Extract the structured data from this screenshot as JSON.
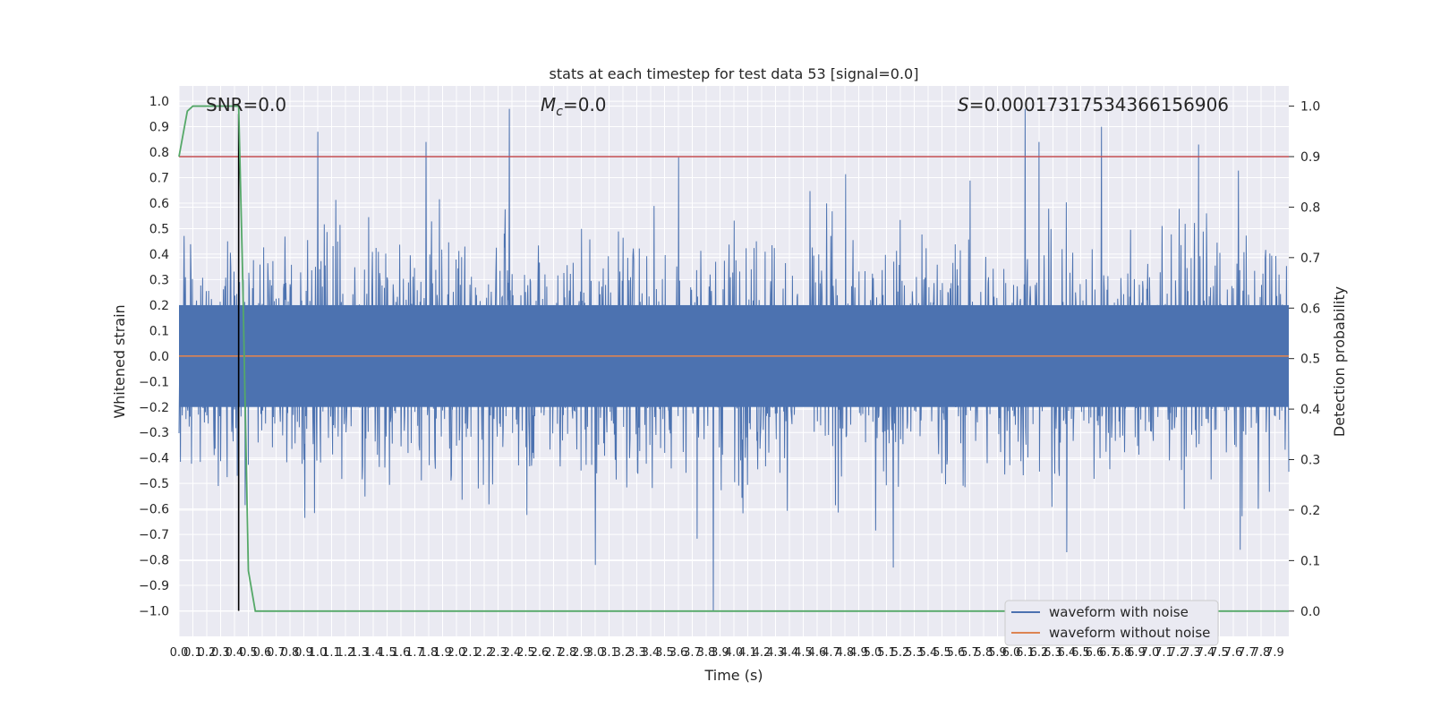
{
  "chart_data": {
    "type": "line",
    "title": "stats at each timestep for test data 53 [signal=0.0]",
    "xlabel": "Time (s)",
    "ylabel_left": "Whitened strain",
    "ylabel_right": "Detection probability",
    "xlim": [
      0.0,
      8.0
    ],
    "ylim_left": [
      -1.1,
      1.06
    ],
    "ylim_right": [
      -0.05,
      1.04
    ],
    "grid": true,
    "annotations": {
      "snr": "SNR=0.0",
      "mc_symbol": "M",
      "mc_sub": "c",
      "mc_value": "=0.0",
      "s_symbol": "S",
      "s_value": "=0.00017317534366156906"
    },
    "x_ticks": [
      0.0,
      0.1,
      0.2,
      0.3,
      0.4,
      0.5,
      0.6,
      0.7,
      0.8,
      0.9,
      1.0,
      1.1,
      1.2,
      1.3,
      1.4,
      1.5,
      1.6,
      1.7,
      1.8,
      1.9,
      2.0,
      2.1,
      2.2,
      2.3,
      2.4,
      2.5,
      2.6,
      2.7,
      2.8,
      2.9,
      3.0,
      3.1,
      3.2,
      3.3,
      3.4,
      3.5,
      3.6,
      3.7,
      3.8,
      3.9,
      4.0,
      4.1,
      4.2,
      4.3,
      4.4,
      4.5,
      4.6,
      4.7,
      4.8,
      4.9,
      5.0,
      5.1,
      5.2,
      5.3,
      5.4,
      5.5,
      5.6,
      5.7,
      5.8,
      5.9,
      6.0,
      6.1,
      6.2,
      6.3,
      6.4,
      6.5,
      6.6,
      6.7,
      6.8,
      6.9,
      7.0,
      7.1,
      7.2,
      7.3,
      7.4,
      7.5,
      7.6,
      7.7,
      7.8,
      7.9
    ],
    "y_ticks_left": [
      -1.0,
      -0.9,
      -0.8,
      -0.7,
      -0.6,
      -0.5,
      -0.4,
      -0.3,
      -0.2,
      -0.1,
      0.0,
      0.1,
      0.2,
      0.3,
      0.4,
      0.5,
      0.6,
      0.7,
      0.8,
      0.9,
      1.0
    ],
    "y_ticks_right": [
      0.0,
      0.1,
      0.2,
      0.3,
      0.4,
      0.5,
      0.6,
      0.7,
      0.8,
      0.9,
      1.0
    ],
    "series": [
      {
        "name": "waveform with noise",
        "axis": "left",
        "color": "#4c72b0",
        "style": "dense-noise",
        "core_range": [
          -0.2,
          0.2
        ],
        "peaks": [
          {
            "x": 1.0,
            "y": 0.88
          },
          {
            "x": 1.78,
            "y": 0.84
          },
          {
            "x": 2.38,
            "y": 0.97
          },
          {
            "x": 3.6,
            "y": 0.78
          },
          {
            "x": 6.1,
            "y": 0.97
          },
          {
            "x": 6.2,
            "y": 0.84
          },
          {
            "x": 6.65,
            "y": 0.9
          },
          {
            "x": 7.35,
            "y": 0.83
          },
          {
            "x": 0.42,
            "y": -0.47
          },
          {
            "x": 3.85,
            "y": -1.0
          },
          {
            "x": 3.0,
            "y": -0.82
          },
          {
            "x": 5.15,
            "y": -0.83
          },
          {
            "x": 7.65,
            "y": -0.76
          },
          {
            "x": 6.4,
            "y": -0.77
          }
        ]
      },
      {
        "name": "waveform without noise",
        "axis": "left",
        "color": "#dd8452",
        "x": [
          0.0,
          8.0
        ],
        "y": [
          0.0,
          0.0
        ]
      },
      {
        "name": "",
        "axis": "right",
        "color": "#55a868",
        "x": [
          0.0,
          0.06,
          0.1,
          0.2,
          0.3,
          0.38,
          0.43,
          0.46,
          0.5,
          0.55,
          1.0,
          8.0
        ],
        "y": [
          0.9,
          0.99,
          1.0,
          1.0,
          1.0,
          1.0,
          1.0,
          0.65,
          0.08,
          0.0,
          0.0,
          0.0
        ]
      }
    ],
    "threshold": {
      "axis": "right",
      "value": 0.9,
      "color": "#c44e52"
    },
    "marker_line": {
      "x": 0.43,
      "from": -1.0,
      "to": 0.95,
      "color": "#000000"
    },
    "legend": {
      "placement": "lower-right",
      "entries": [
        "waveform with noise",
        "waveform without noise"
      ]
    }
  }
}
